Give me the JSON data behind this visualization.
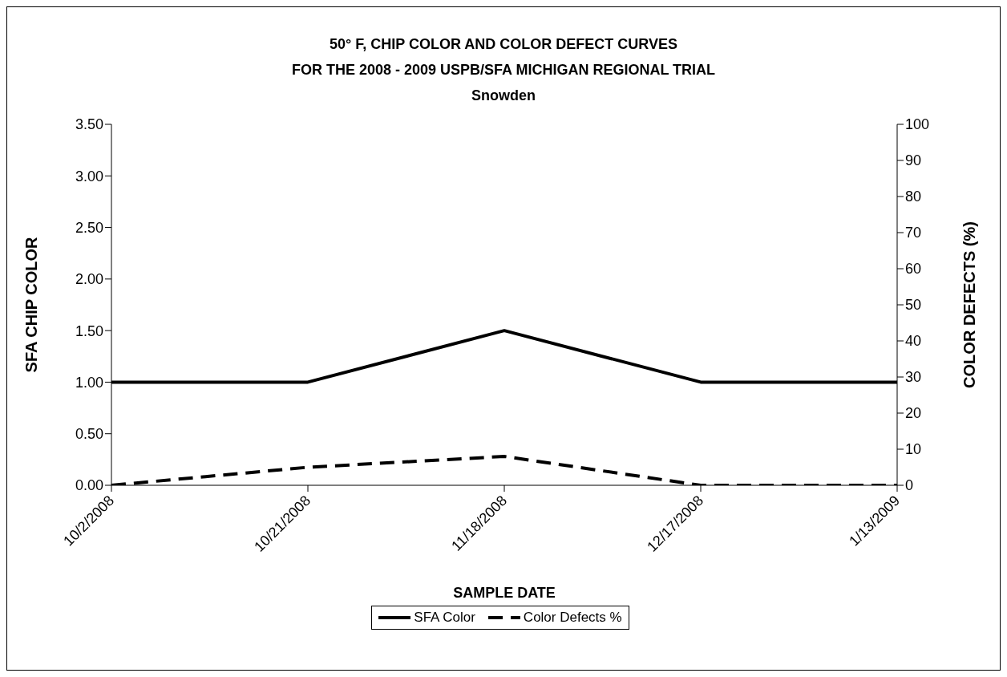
{
  "chart_data": {
    "type": "line",
    "title": "50° F, CHIP COLOR AND COLOR DEFECT CURVES\nFOR THE 2008 - 2009 USPB/SFA MICHIGAN REGIONAL TRIAL\nSnowden",
    "xlabel": "SAMPLE DATE",
    "ylabel": "SFA CHIP COLOR",
    "y2label": "COLOR DEFECTS (%)",
    "categories": [
      "10/2/2008",
      "10/21/2008",
      "11/18/2008",
      "12/17/2008",
      "1/13/2009"
    ],
    "series": [
      {
        "name": "SFA Color",
        "color": "#000000",
        "line_style": "solid",
        "values": [
          1.0,
          1.0,
          1.5,
          1.0,
          1.0
        ]
      },
      {
        "name": "Color Defects %",
        "color": "#000000",
        "line_style": "dashed",
        "axis": "y2",
        "values": [
          0,
          5,
          8,
          0,
          0
        ]
      }
    ],
    "ylim": [
      0,
      3.5
    ],
    "yticks": [
      {
        "value": 0,
        "label": "0.00"
      },
      {
        "value": 0.5,
        "label": "0.50"
      },
      {
        "value": 1,
        "label": "1.00"
      },
      {
        "value": 1.5,
        "label": "1.50"
      },
      {
        "value": 2,
        "label": "2.00"
      },
      {
        "value": 2.5,
        "label": "2.50"
      },
      {
        "value": 3,
        "label": "3.00"
      },
      {
        "value": 3.5,
        "label": "3.50"
      }
    ],
    "y2lim": [
      0,
      100
    ],
    "y2ticks": [
      0,
      10,
      20,
      30,
      40,
      50,
      60,
      70,
      80,
      90,
      100
    ],
    "grid": false,
    "legend": "bottom",
    "marker": "none"
  }
}
